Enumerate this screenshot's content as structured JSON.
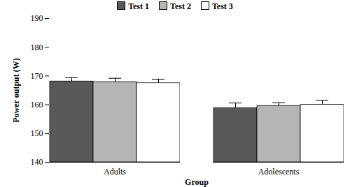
{
  "chart_data": {
    "type": "bar",
    "x_label": "Group",
    "y_label": "Power output (W)",
    "categories": [
      "Adults",
      "Adolescents"
    ],
    "series": [
      {
        "name": "Test 1",
        "color": "#595959",
        "values": [
          168.1,
          158.8
        ],
        "error": [
          1.3,
          1.8
        ]
      },
      {
        "name": "Test 2",
        "color": "#b5b5b5",
        "values": [
          167.9,
          159.6
        ],
        "error": [
          1.3,
          1.1
        ]
      },
      {
        "name": "Test 3",
        "color": "#ffffff",
        "values": [
          167.5,
          160.0
        ],
        "error": [
          1.4,
          1.5
        ]
      }
    ],
    "ylim": [
      140,
      190
    ],
    "yticks": [
      140,
      150,
      160,
      170,
      180,
      190
    ],
    "grid": false,
    "legend": "top"
  }
}
